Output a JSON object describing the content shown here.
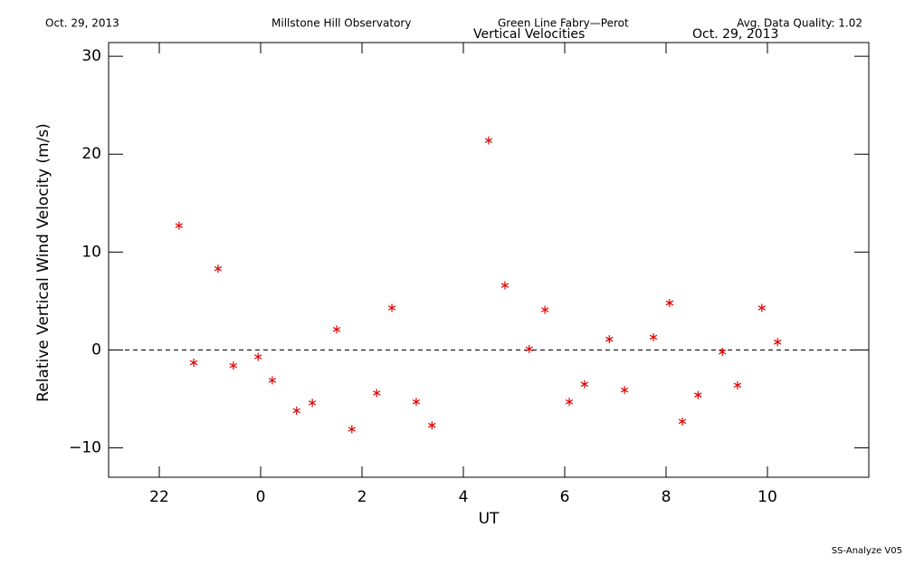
{
  "chart_data": {
    "type": "scatter",
    "date": "Oct. 29, 2013",
    "observatory": "Millstone Hill Observatory",
    "instrument": "Green Line Fabry—Perot",
    "data_quality": "Avg. Data Quality: 1.02",
    "title": "Vertical Velocities",
    "title_date": "Oct. 29, 2013",
    "footer": "SS-Analyze V05",
    "x_label": "UT",
    "y_label": "Relative Vertical Wind Velocity (m/s)",
    "x": [
      -1.61,
      -1.32,
      -0.84,
      -0.54,
      -0.05,
      0.23,
      0.71,
      1.02,
      1.5,
      1.8,
      2.29,
      2.59,
      3.07,
      3.38,
      4.5,
      4.82,
      5.3,
      5.61,
      6.09,
      6.39,
      6.88,
      7.18,
      7.75,
      8.07,
      8.32,
      8.63,
      9.11,
      9.41,
      9.89,
      10.2
    ],
    "values": [
      12.7,
      -1.3,
      8.3,
      -1.6,
      -0.7,
      -3.1,
      -6.2,
      -5.4,
      2.1,
      -8.1,
      -4.4,
      4.3,
      -5.3,
      -7.7,
      21.4,
      6.6,
      0.1,
      4.1,
      -5.3,
      -3.5,
      1.1,
      -4.1,
      1.3,
      4.8,
      -7.3,
      -4.6,
      -0.2,
      -3.6,
      4.3,
      0.8
    ],
    "color": "#e00000",
    "reference_line": 0,
    "xlim": [
      -3,
      12
    ],
    "xticks": [
      {
        "value": -2,
        "label": "22"
      },
      0,
      2,
      4,
      6,
      8,
      10
    ],
    "ylim": [
      -13,
      31.4
    ],
    "yticks": [
      {
        "value": -10,
        "label": "−10"
      },
      0,
      10,
      20,
      30
    ]
  }
}
